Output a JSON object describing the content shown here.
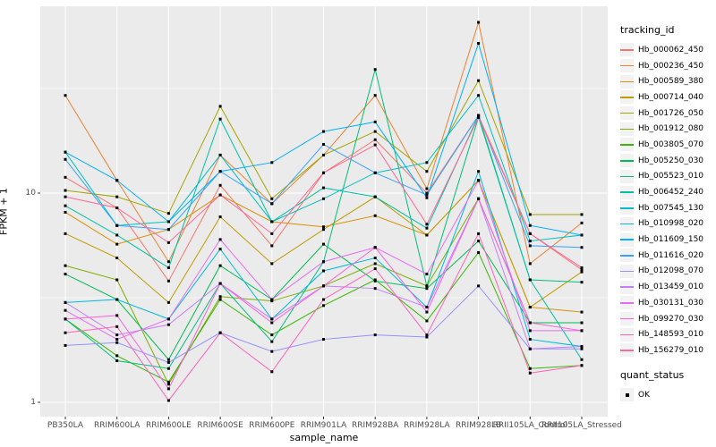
{
  "figure": {
    "background": "#FFFFFF",
    "panel_background": "#EBEBEB",
    "grid_major_color": "#FFFFFF",
    "grid_minor_color": "#FFFFFF",
    "axis_text_color": "#4D4D4D",
    "tick_mark_color": "#333333",
    "point_color": "#000000"
  },
  "axes": {
    "x_title": "sample_name",
    "y_title": "FPKM + 1",
    "y_major_ticks": [
      {
        "label": "10",
        "value": 10
      },
      {
        "label": "1",
        "value": 1
      }
    ],
    "y_minor_values": [
      3.162,
      31.623
    ]
  },
  "legend": {
    "tracking_title": "tracking_id",
    "quant_title": "quant_status",
    "quant_items": [
      {
        "label": "OK"
      }
    ]
  },
  "chart_data": {
    "type": "line",
    "title": "",
    "xlabel": "sample_name",
    "ylabel": "FPKM + 1",
    "y_scale": "log10",
    "ylim": [
      0.86,
      76
    ],
    "grid": true,
    "legend_position": "right",
    "point_shape": "filled-square",
    "quant_status": "OK",
    "categories": [
      "PB350LA",
      "RRIM600LA",
      "RRIM600LE",
      "RRIM600SE",
      "RRIM600PE",
      "RRIM901LA",
      "RRIM928BA",
      "RRIM928LA",
      "RRIM928LB",
      "RRII105LA_Control",
      "RRII105LA_Stressed"
    ],
    "series": [
      {
        "name": "Hb_000062_450",
        "color": "#F8766D",
        "values": [
          11.9,
          8.5,
          3.8,
          10.9,
          5.6,
          12.5,
          18.0,
          10.0,
          23.5,
          6.4,
          4.3
        ]
      },
      {
        "name": "Hb_000236_450",
        "color": "#EA8331",
        "values": [
          29.3,
          11.5,
          4.7,
          15.2,
          8.9,
          15.2,
          29.3,
          10.5,
          65.5,
          4.6,
          7.2
        ]
      },
      {
        "name": "Hb_000589_380",
        "color": "#D89000",
        "values": [
          8.1,
          5.7,
          6.7,
          9.8,
          7.3,
          6.9,
          7.8,
          6.3,
          11.5,
          2.85,
          2.7
        ]
      },
      {
        "name": "Hb_000714_040",
        "color": "#C09B00",
        "values": [
          6.4,
          4.9,
          3.0,
          7.7,
          4.6,
          6.7,
          9.6,
          6.3,
          11.5,
          2.85,
          4.2
        ]
      },
      {
        "name": "Hb_001726_050",
        "color": "#A3A500",
        "values": [
          10.3,
          9.6,
          8.0,
          26.0,
          9.4,
          15.2,
          19.7,
          12.7,
          34.5,
          7.9,
          7.9
        ]
      },
      {
        "name": "Hb_001912_080",
        "color": "#7CAE00",
        "values": [
          4.5,
          3.85,
          1.22,
          3.2,
          3.05,
          3.6,
          4.6,
          3.6,
          9.4,
          2.4,
          2.4
        ]
      },
      {
        "name": "Hb_003805_070",
        "color": "#39B600",
        "values": [
          2.5,
          1.67,
          1.25,
          3.1,
          2.1,
          2.9,
          3.85,
          2.45,
          5.2,
          1.45,
          1.5
        ]
      },
      {
        "name": "Hb_005250_030",
        "color": "#00BB4E",
        "values": [
          4.1,
          3.1,
          1.6,
          4.5,
          3.1,
          5.7,
          3.8,
          3.5,
          5.9,
          2.4,
          2.4
        ]
      },
      {
        "name": "Hb_005523_010",
        "color": "#00BF7D",
        "values": [
          2.5,
          1.58,
          1.45,
          3.7,
          1.95,
          4.7,
          39.0,
          3.6,
          23.0,
          3.85,
          3.75
        ]
      },
      {
        "name": "Hb_006452_240",
        "color": "#00C1A3",
        "values": [
          8.7,
          6.3,
          4.4,
          22.6,
          7.3,
          10.6,
          9.6,
          6.8,
          23.5,
          3.85,
          1.6
        ]
      },
      {
        "name": "Hb_007545_130",
        "color": "#00BFC4",
        "values": [
          15.7,
          7.0,
          7.3,
          15.2,
          7.3,
          9.4,
          12.5,
          14.0,
          29.3,
          5.9,
          6.3
        ]
      },
      {
        "name": "Hb_010998_020",
        "color": "#00BAE0",
        "values": [
          3.0,
          3.1,
          2.5,
          5.4,
          2.5,
          4.25,
          4.9,
          2.85,
          12.7,
          2.0,
          1.85
        ]
      },
      {
        "name": "Hb_011609_150",
        "color": "#00B0F6",
        "values": [
          15.7,
          11.5,
          7.3,
          12.7,
          14.0,
          19.7,
          21.9,
          9.5,
          52.0,
          7.0,
          6.3
        ]
      },
      {
        "name": "Hb_011616_020",
        "color": "#35A2FF",
        "values": [
          14.5,
          7.0,
          6.7,
          12.7,
          8.9,
          17.1,
          12.5,
          9.8,
          23.5,
          5.6,
          5.5
        ]
      },
      {
        "name": "Hb_012098_070",
        "color": "#9590FF",
        "values": [
          1.87,
          1.93,
          1.55,
          2.15,
          1.75,
          2.0,
          2.1,
          2.05,
          3.6,
          1.8,
          1.8
        ]
      },
      {
        "name": "Hb_013459_010",
        "color": "#C77CFF",
        "values": [
          3.0,
          2.1,
          2.35,
          3.7,
          2.5,
          3.6,
          3.5,
          2.85,
          9.4,
          1.8,
          1.85
        ]
      },
      {
        "name": "Hb_030131_030",
        "color": "#E76BF3",
        "values": [
          2.75,
          2.0,
          2.5,
          6.0,
          3.1,
          4.7,
          5.5,
          4.1,
          11.5,
          2.2,
          2.2
        ]
      },
      {
        "name": "Hb_099270_030",
        "color": "#FA62DB",
        "values": [
          2.5,
          2.6,
          1.16,
          3.7,
          2.4,
          3.6,
          5.5,
          2.7,
          9.4,
          2.4,
          2.2
        ]
      },
      {
        "name": "Hb_148593_010",
        "color": "#FF62BC",
        "values": [
          2.15,
          2.3,
          1.02,
          2.15,
          1.4,
          3.1,
          4.35,
          2.1,
          6.4,
          1.38,
          1.5
        ]
      },
      {
        "name": "Hb_156279_010",
        "color": "#FF6A98",
        "values": [
          9.6,
          8.5,
          5.8,
          9.8,
          6.4,
          12.5,
          17.0,
          7.1,
          23.0,
          6.4,
          4.4
        ]
      }
    ]
  }
}
